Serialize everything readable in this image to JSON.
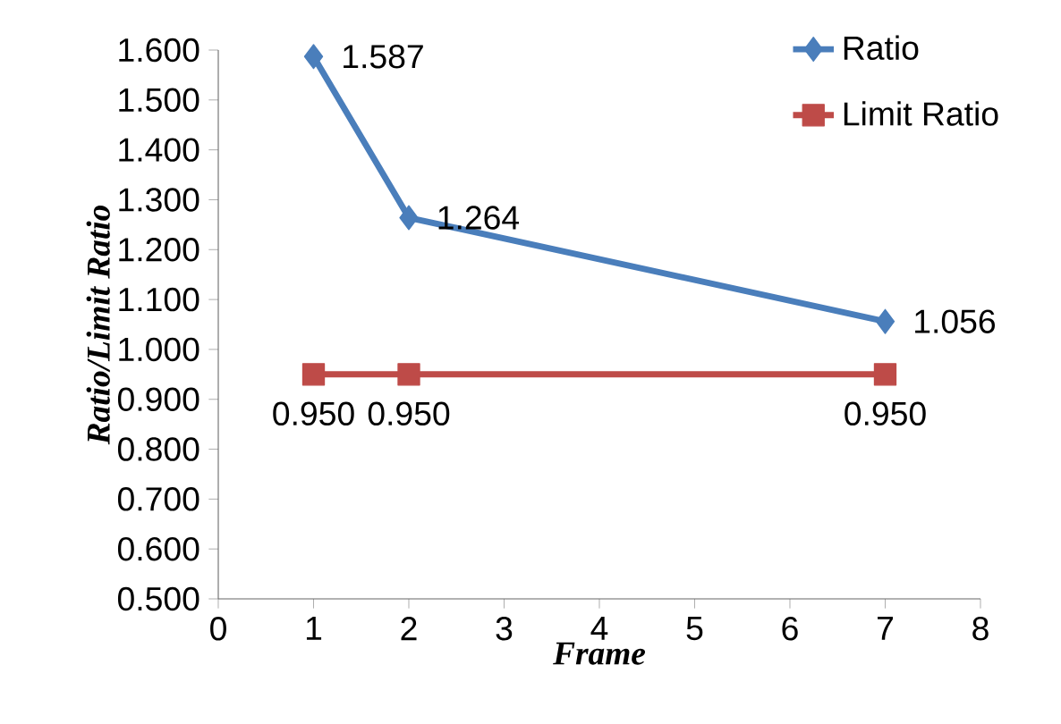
{
  "chart_data": {
    "type": "line",
    "xlabel": "Frame",
    "ylabel": "Ratio/Limit Ratio",
    "xlim": [
      0,
      8
    ],
    "xticks": [
      0,
      1,
      2,
      3,
      4,
      5,
      6,
      7,
      8
    ],
    "ylim": [
      0.5,
      1.6
    ],
    "yticks": [
      {
        "value": 0.5,
        "label": "0.500"
      },
      {
        "value": 0.6,
        "label": "0.600"
      },
      {
        "value": 0.7,
        "label": "0.700"
      },
      {
        "value": 0.8,
        "label": "0.800"
      },
      {
        "value": 0.9,
        "label": "0.900"
      },
      {
        "value": 1.0,
        "label": "1.000"
      },
      {
        "value": 1.1,
        "label": "1.100"
      },
      {
        "value": 1.2,
        "label": "1.200"
      },
      {
        "value": 1.3,
        "label": "1.300"
      },
      {
        "value": 1.4,
        "label": "1.400"
      },
      {
        "value": 1.5,
        "label": "1.500"
      },
      {
        "value": 1.6,
        "label": "1.600"
      }
    ],
    "x": [
      1,
      2,
      7
    ],
    "series": [
      {
        "name": "Ratio",
        "color": "#4a7ebb",
        "marker": "diamond",
        "values": [
          1.587,
          1.264,
          1.056
        ],
        "value_labels": [
          "1.587",
          "1.264",
          "1.056"
        ]
      },
      {
        "name": "Limit Ratio",
        "color": "#be4b48",
        "marker": "square",
        "values": [
          0.95,
          0.95,
          0.95
        ],
        "value_labels": [
          "0.950",
          "0.950",
          "0.950"
        ]
      }
    ],
    "grid": false,
    "legend": "top right"
  }
}
